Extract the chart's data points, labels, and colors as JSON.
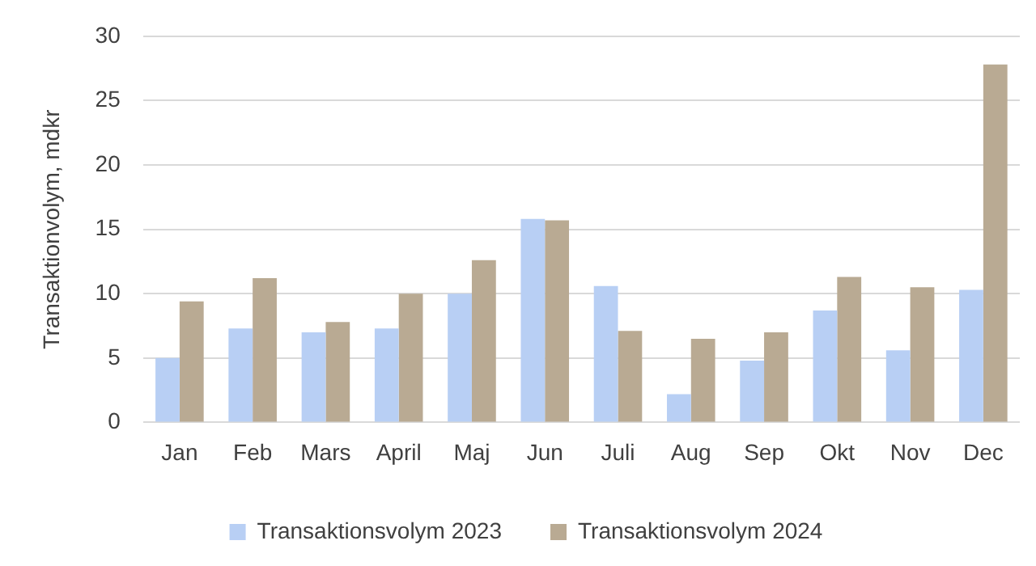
{
  "chart_data": {
    "type": "bar",
    "ylabel": "Transaktionvolym, mdkr",
    "categories": [
      "Jan",
      "Feb",
      "Mars",
      "April",
      "Maj",
      "Jun",
      "Juli",
      "Aug",
      "Sep",
      "Okt",
      "Nov",
      "Dec"
    ],
    "series": [
      {
        "name": "Transaktionsvolym 2023",
        "color": "#b8cff4",
        "values": [
          5.0,
          7.3,
          7.0,
          7.3,
          10.0,
          15.8,
          10.6,
          2.2,
          4.8,
          8.7,
          5.6,
          10.3
        ]
      },
      {
        "name": "Transaktionsvolym 2024",
        "color": "#b9aa93",
        "values": [
          9.4,
          11.2,
          7.8,
          10.0,
          12.6,
          15.7,
          7.1,
          6.5,
          7.0,
          11.3,
          10.5,
          27.8
        ]
      }
    ],
    "ylim": [
      0,
      30
    ],
    "yticks": [
      0,
      5,
      10,
      15,
      20,
      25,
      30
    ],
    "grid": "y",
    "legend": "bottom"
  }
}
